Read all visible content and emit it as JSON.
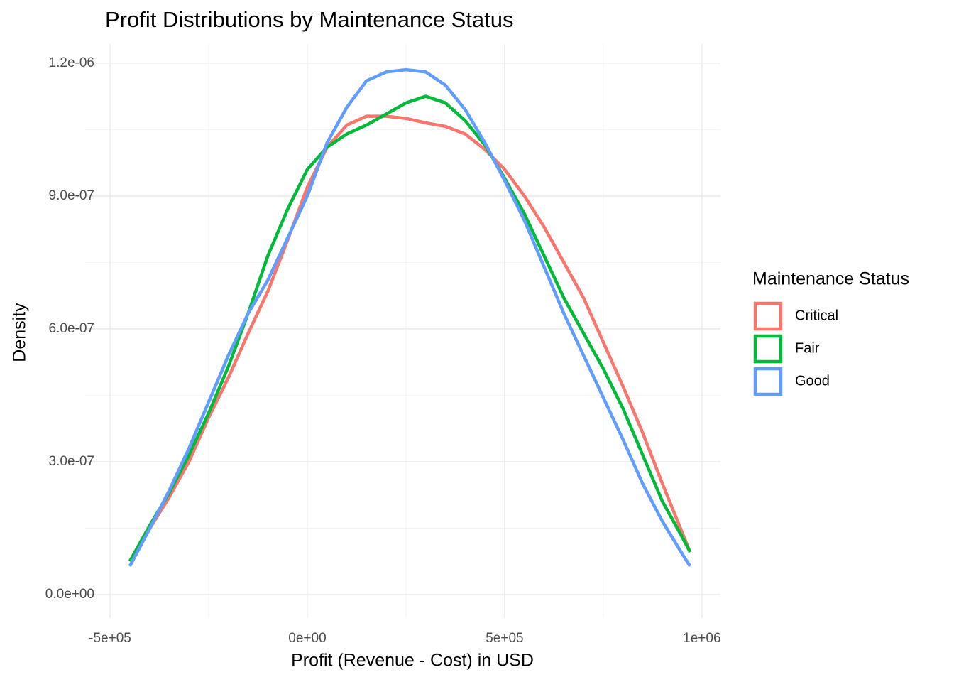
{
  "chart_data": {
    "type": "line",
    "title": "Profit Distributions by Maintenance Status",
    "x_label": "Profit (Revenue - Cost) in USD",
    "y_label": "Density",
    "legend_title": "Maintenance Status",
    "legend_position": "right",
    "grid": true,
    "xlim": [
      -563000,
      1047000
    ],
    "ylim": [
      -5.3e-08,
      1.243e-06
    ],
    "xticks": [
      {
        "value": -500000,
        "label": "-5e+05"
      },
      {
        "value": 0,
        "label": "0e+00"
      },
      {
        "value": 500000,
        "label": "5e+05"
      },
      {
        "value": 1000000,
        "label": "1e+06"
      }
    ],
    "yticks": [
      {
        "value": 0,
        "label": "0.0e+00"
      },
      {
        "value": 3e-07,
        "label": "3.0e-07"
      },
      {
        "value": 6e-07,
        "label": "6.0e-07"
      },
      {
        "value": 9e-07,
        "label": "9.0e-07"
      },
      {
        "value": 1.2e-06,
        "label": "1.2e-06"
      }
    ],
    "x_minor_ticks": [
      -250000,
      250000,
      750000
    ],
    "y_minor_ticks": [
      1.5e-07,
      4.5e-07,
      7.5e-07,
      1.05e-06
    ],
    "x": [
      -450000,
      -400000,
      -350000,
      -300000,
      -250000,
      -200000,
      -150000,
      -100000,
      -50000,
      0,
      50000,
      100000,
      150000,
      200000,
      250000,
      300000,
      350000,
      400000,
      450000,
      500000,
      550000,
      600000,
      650000,
      700000,
      750000,
      800000,
      850000,
      900000,
      950000,
      970000
    ],
    "series": [
      {
        "name": "Critical",
        "color": "#F8766D",
        "values": [
          7.5e-08,
          1.48e-07,
          2.2e-07,
          3e-07,
          4e-07,
          4.9e-07,
          5.9e-07,
          6.85e-07,
          8e-07,
          9.2e-07,
          1.01e-06,
          1.06e-06,
          1.08e-06,
          1.08e-06,
          1.075e-06,
          1.065e-06,
          1.057e-06,
          1.04e-06,
          1.005e-06,
          9.6e-07,
          9e-07,
          8.3e-07,
          7.5e-07,
          6.7e-07,
          5.7e-07,
          4.7e-07,
          3.65e-07,
          2.5e-07,
          1.4e-07,
          9.6e-08
        ]
      },
      {
        "name": "Fair",
        "color": "#00BA38",
        "values": [
          7.5e-08,
          1.55e-07,
          2.3e-07,
          3.15e-07,
          4.1e-07,
          5.15e-07,
          6.35e-07,
          7.65e-07,
          8.7e-07,
          9.6e-07,
          1.01e-06,
          1.04e-06,
          1.06e-06,
          1.085e-06,
          1.11e-06,
          1.125e-06,
          1.11e-06,
          1.07e-06,
          1.015e-06,
          9.4e-07,
          8.6e-07,
          7.65e-07,
          6.7e-07,
          5.9e-07,
          5.1e-07,
          4.2e-07,
          3.15e-07,
          2.1e-07,
          1.3e-07,
          9.6e-08
        ]
      },
      {
        "name": "Good",
        "color": "#619CFF",
        "values": [
          6.4e-08,
          1.48e-07,
          2.35e-07,
          3.3e-07,
          4.35e-07,
          5.4e-07,
          6.35e-07,
          7.1e-07,
          8.05e-07,
          9e-07,
          1.02e-06,
          1.1e-06,
          1.16e-06,
          1.18e-06,
          1.185e-06,
          1.18e-06,
          1.15e-06,
          1.095e-06,
          1.02e-06,
          9.35e-07,
          8.45e-07,
          7.4e-07,
          6.35e-07,
          5.4e-07,
          4.45e-07,
          3.5e-07,
          2.5e-07,
          1.65e-07,
          9.2e-08,
          6.4e-08
        ]
      }
    ]
  }
}
